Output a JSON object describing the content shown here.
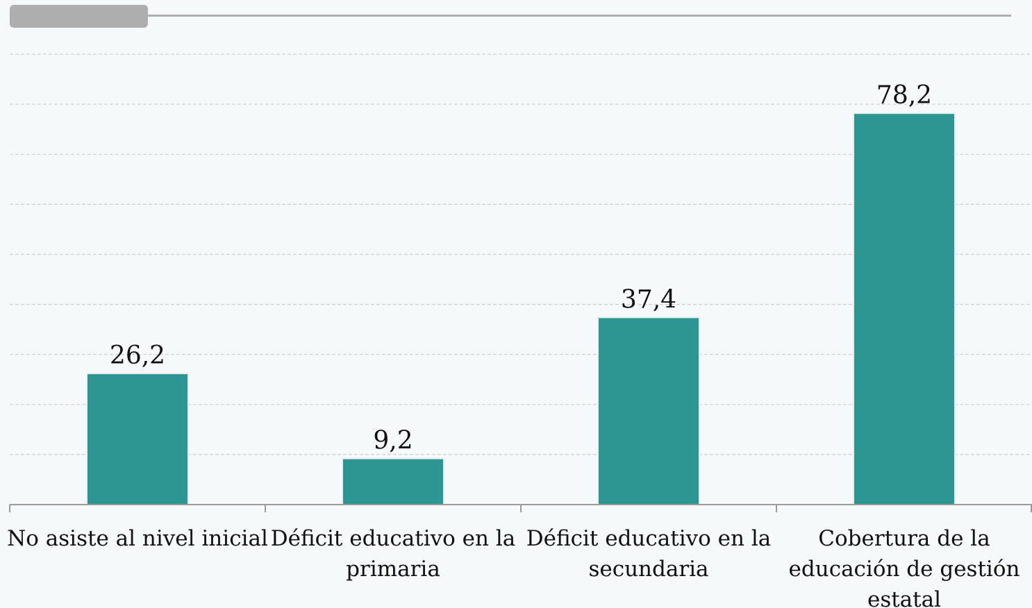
{
  "colors": {
    "background": "#f6f9fa",
    "bar": "#2e9692",
    "grid": "#cfcfcf",
    "axis": "#9a9a9a",
    "header": "#aeaeae",
    "text": "#111111"
  },
  "chart_data": {
    "type": "bar",
    "title": "",
    "xlabel": "",
    "ylabel": "",
    "categories": [
      [
        "No asiste al nivel inicial"
      ],
      [
        "Déficit educativo en la",
        "primaria"
      ],
      [
        "Déficit educativo en la",
        "secundaria"
      ],
      [
        "Cobertura de la",
        "educación de gestión",
        "estatal"
      ]
    ],
    "values": [
      26.2,
      9.2,
      37.4,
      78.2
    ],
    "value_labels": [
      "26,2",
      "9,2",
      "37,4",
      "78,2"
    ],
    "ylim": [
      0,
      90
    ],
    "grid": true,
    "legend": "none"
  }
}
